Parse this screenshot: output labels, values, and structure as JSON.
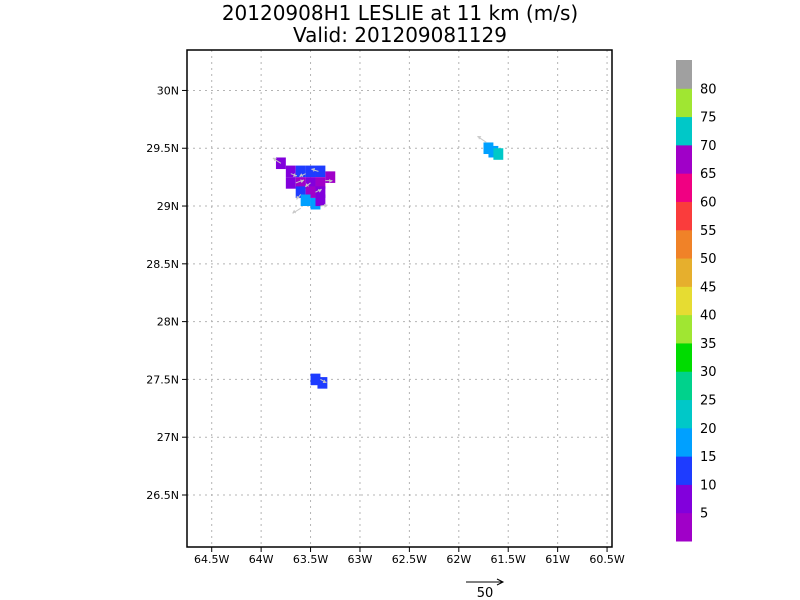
{
  "chart_data": {
    "type": "heatmap",
    "title": "20120908H1 LESLIE at 11 km (m/s)",
    "subtitle": "Valid: 201209081129",
    "xlim": [
      -64.75,
      -60.45
    ],
    "ylim": [
      26.05,
      30.35
    ],
    "x_ticks": [
      -64.5,
      -64.0,
      -63.5,
      -63.0,
      -62.5,
      -62.0,
      -61.5,
      -61.0,
      -60.5
    ],
    "x_tick_labels": [
      "64.5W",
      "64W",
      "63.5W",
      "63W",
      "62.5W",
      "62W",
      "61.5W",
      "61W",
      "60.5W"
    ],
    "y_ticks": [
      26.5,
      27.0,
      27.5,
      28.0,
      28.5,
      29.0,
      29.5,
      30.0
    ],
    "y_tick_labels": [
      "26.5N",
      "27N",
      "27.5N",
      "28N",
      "28.5N",
      "29N",
      "29.5N",
      "30N"
    ],
    "grid": true,
    "colorbar": {
      "colors": [
        "#a000c8",
        "#8200dc",
        "#1e3cff",
        "#00a0ff",
        "#00c8c8",
        "#00d28c",
        "#00dc00",
        "#a0e632",
        "#e6dc32",
        "#e6af2d",
        "#f08228",
        "#fa3c3c",
        "#f00082",
        "#a000c8",
        "#00c8c8",
        "#a0e632",
        "#a0a0a0"
      ],
      "labels": [
        "5",
        "10",
        "15",
        "20",
        "25",
        "30",
        "35",
        "40",
        "45",
        "50",
        "55",
        "60",
        "65",
        "70",
        "75",
        "80"
      ]
    },
    "cells": [
      {
        "lon": -63.8,
        "lat": 29.37,
        "value": 8
      },
      {
        "lon": -63.7,
        "lat": 29.3,
        "value": 8
      },
      {
        "lon": -63.6,
        "lat": 29.3,
        "value": 13
      },
      {
        "lon": -63.5,
        "lat": 29.3,
        "value": 13
      },
      {
        "lon": -63.4,
        "lat": 29.3,
        "value": 13
      },
      {
        "lon": -63.3,
        "lat": 29.25,
        "value": 66
      },
      {
        "lon": -63.7,
        "lat": 29.2,
        "value": 8
      },
      {
        "lon": -63.6,
        "lat": 29.2,
        "value": 66
      },
      {
        "lon": -63.5,
        "lat": 29.2,
        "value": 8
      },
      {
        "lon": -63.4,
        "lat": 29.2,
        "value": 66
      },
      {
        "lon": -63.6,
        "lat": 29.12,
        "value": 13
      },
      {
        "lon": -63.5,
        "lat": 29.12,
        "value": 66
      },
      {
        "lon": -63.4,
        "lat": 29.12,
        "value": 8
      },
      {
        "lon": -63.55,
        "lat": 29.05,
        "value": 18
      },
      {
        "lon": -63.45,
        "lat": 29.02,
        "value": 18
      },
      {
        "lon": -63.4,
        "lat": 29.05,
        "value": 8
      },
      {
        "lon": -61.7,
        "lat": 29.5,
        "value": 18
      },
      {
        "lon": -61.65,
        "lat": 29.47,
        "value": 18
      },
      {
        "lon": -61.6,
        "lat": 29.45,
        "value": 23
      },
      {
        "lon": -63.45,
        "lat": 27.5,
        "value": 13
      },
      {
        "lon": -63.38,
        "lat": 27.47,
        "value": 13
      }
    ],
    "vectors": [
      {
        "lon": -63.8,
        "lat": 29.37,
        "u": -8,
        "v": 5
      },
      {
        "lon": -63.7,
        "lat": 29.28,
        "u": 6,
        "v": -2
      },
      {
        "lon": -63.55,
        "lat": 29.28,
        "u": -6,
        "v": -3
      },
      {
        "lon": -63.42,
        "lat": 29.3,
        "u": -7,
        "v": 2
      },
      {
        "lon": -63.65,
        "lat": 29.2,
        "u": 8,
        "v": 3
      },
      {
        "lon": -63.5,
        "lat": 29.2,
        "u": -5,
        "v": -4
      },
      {
        "lon": -63.35,
        "lat": 29.22,
        "u": 7,
        "v": 0
      },
      {
        "lon": -63.6,
        "lat": 29.1,
        "u": -4,
        "v": -5
      },
      {
        "lon": -63.45,
        "lat": 29.12,
        "u": 6,
        "v": 3
      },
      {
        "lon": -63.6,
        "lat": 28.98,
        "u": -8,
        "v": -5
      },
      {
        "lon": -63.4,
        "lat": 29.0,
        "u": 7,
        "v": 1
      },
      {
        "lon": -61.72,
        "lat": 29.55,
        "u": -9,
        "v": 6
      },
      {
        "lon": -63.4,
        "lat": 27.5,
        "u": 6,
        "v": -3
      }
    ],
    "reference_vector": {
      "label": "50",
      "magnitude": 50
    }
  }
}
